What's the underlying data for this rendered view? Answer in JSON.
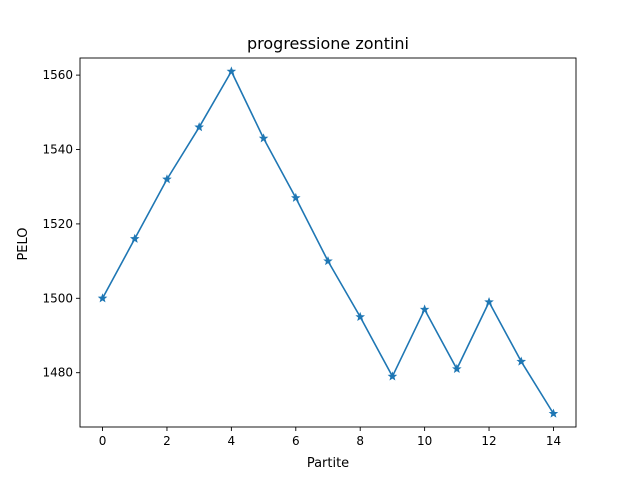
{
  "chart_data": {
    "type": "line",
    "title": "progressione zontini",
    "xlabel": "Partite",
    "ylabel": "PELO",
    "xlim": [
      -0.7,
      14.7
    ],
    "ylim": [
      1465.4,
      1564.6
    ],
    "xticks": [
      0,
      2,
      4,
      6,
      8,
      10,
      12,
      14
    ],
    "yticks": [
      1480,
      1500,
      1520,
      1540,
      1560
    ],
    "grid": false,
    "series": [
      {
        "color": "#1f77b4",
        "marker": "star",
        "x": [
          0,
          1,
          2,
          3,
          4,
          5,
          6,
          7,
          8,
          9,
          10,
          11,
          12,
          13,
          14
        ],
        "values": [
          1500,
          1516,
          1532,
          1546,
          1561,
          1543,
          1527,
          1510,
          1495,
          1479,
          1497,
          1481,
          1499,
          1483,
          1469
        ]
      }
    ]
  }
}
